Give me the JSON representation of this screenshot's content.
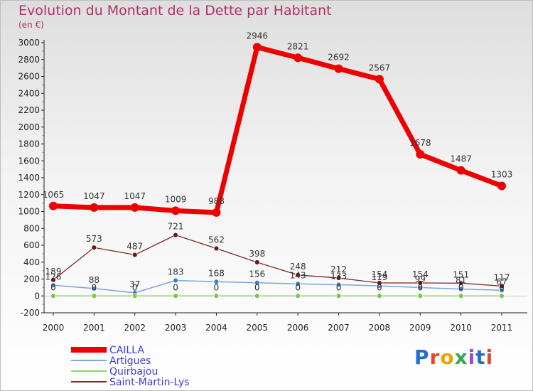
{
  "title": "Evolution du Montant de la Dette par Habitant",
  "subtitle": "(en €)",
  "logo": {
    "text": "Proxiti",
    "colors": [
      "#1f6fd0",
      "#e0492d",
      "#f0a300",
      "#3aa655",
      "#9b4bd0",
      "#1f6fd0",
      "#e0492d"
    ]
  },
  "chart_data": {
    "type": "line",
    "x": [
      2000,
      2001,
      2002,
      2003,
      2004,
      2005,
      2006,
      2007,
      2008,
      2009,
      2010,
      2011
    ],
    "ylim": [
      -200,
      3000
    ],
    "yticks": [
      -200,
      0,
      200,
      400,
      600,
      800,
      1000,
      1200,
      1400,
      1600,
      1800,
      2000,
      2200,
      2400,
      2600,
      2800,
      3000
    ],
    "grid": false,
    "legend_position": "bottom-left",
    "series": [
      {
        "name": "CAILLA",
        "color": "#ee0000",
        "values": [
          1065,
          1047,
          1047,
          1009,
          988,
          2946,
          2821,
          2692,
          2567,
          1678,
          1487,
          1303
        ],
        "labels": [
          "1065",
          "1047",
          "1047",
          "1009",
          "988",
          "2946",
          "2821",
          "2692",
          "2567",
          "1678",
          "1487",
          "1303"
        ]
      },
      {
        "name": "Artigues",
        "color": "#7aa6d6",
        "values": [
          126,
          88,
          37,
          183,
          168,
          156,
          143,
          133,
          119,
          99,
          81,
          67
        ],
        "labels": [
          "126",
          "88",
          "37",
          "183",
          "168",
          "156",
          "143",
          "133",
          "119",
          "99",
          "81",
          "67"
        ]
      },
      {
        "name": "Quirbajou",
        "color": "#8ed46a",
        "values": [
          0,
          0,
          0,
          0,
          0,
          0,
          0,
          0,
          0,
          0,
          0,
          0
        ],
        "labels": [
          "0",
          "0",
          "0",
          "0",
          "0",
          "0",
          "0",
          "0",
          "0",
          "0",
          "0",
          "0"
        ]
      },
      {
        "name": "Saint-Martin-Lys",
        "color": "#7a2626",
        "values": [
          189,
          573,
          487,
          721,
          562,
          398,
          248,
          212,
          154,
          154,
          151,
          117
        ],
        "labels": [
          "189",
          "573",
          "487",
          "721",
          "562",
          "398",
          "248",
          "212",
          "154",
          "154",
          "151",
          "117"
        ]
      }
    ]
  }
}
